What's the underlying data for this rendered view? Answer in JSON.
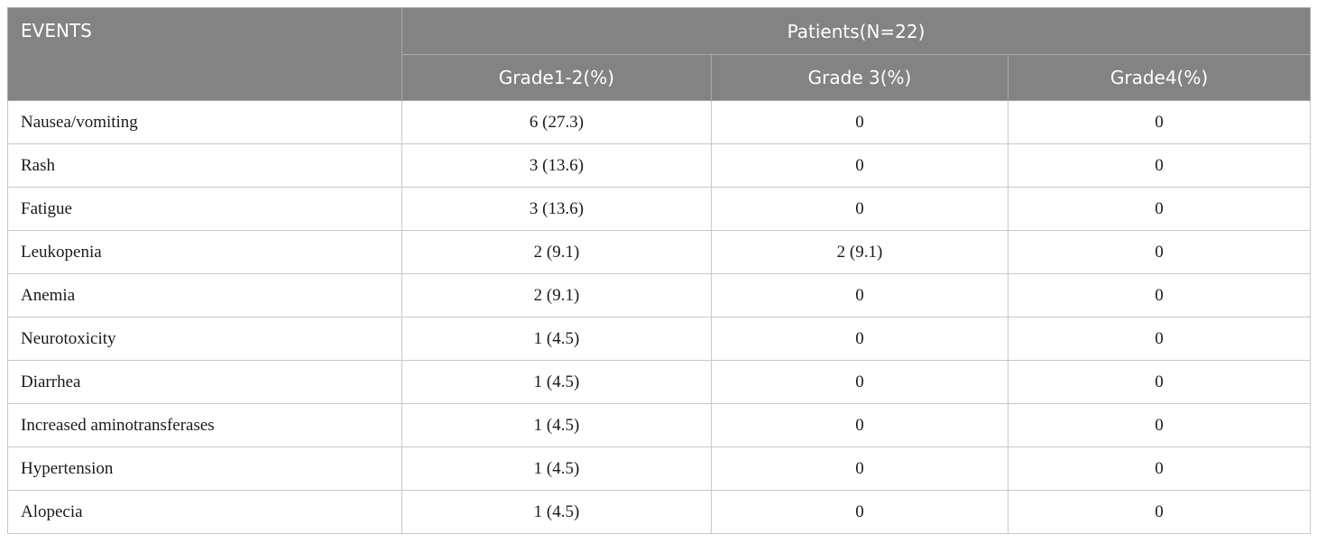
{
  "table": {
    "header": {
      "events_label": "EVENTS",
      "group_label": "Patients(N=22)",
      "columns": [
        "Grade1-2(%)",
        "Grade 3(%)",
        "Grade4(%)"
      ]
    },
    "rows": [
      {
        "event": "Nausea/vomiting",
        "grade1_2": "6 (27.3)",
        "grade3": "0",
        "grade4": "0"
      },
      {
        "event": "Rash",
        "grade1_2": "3 (13.6)",
        "grade3": "0",
        "grade4": "0"
      },
      {
        "event": "Fatigue",
        "grade1_2": "3 (13.6)",
        "grade3": "0",
        "grade4": "0"
      },
      {
        "event": "Leukopenia",
        "grade1_2": "2 (9.1)",
        "grade3": "2 (9.1)",
        "grade4": "0"
      },
      {
        "event": "Anemia",
        "grade1_2": "2 (9.1)",
        "grade3": "0",
        "grade4": "0"
      },
      {
        "event": "Neurotoxicity",
        "grade1_2": "1 (4.5)",
        "grade3": "0",
        "grade4": "0"
      },
      {
        "event": "Diarrhea",
        "grade1_2": "1 (4.5)",
        "grade3": "0",
        "grade4": "0"
      },
      {
        "event": "Increased aminotransferases",
        "grade1_2": "1 (4.5)",
        "grade3": "0",
        "grade4": "0"
      },
      {
        "event": "Hypertension",
        "grade1_2": "1 (4.5)",
        "grade3": "0",
        "grade4": "0"
      },
      {
        "event": "Alopecia",
        "grade1_2": "1 (4.5)",
        "grade3": "0",
        "grade4": "0"
      }
    ]
  },
  "colors": {
    "header_bg": "#838383",
    "header_text": "#ffffff",
    "grid_line": "#c8c8c8"
  }
}
